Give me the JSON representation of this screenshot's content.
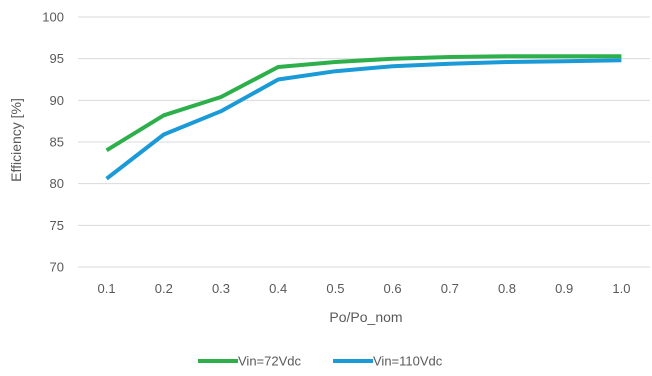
{
  "chart_data": {
    "type": "line",
    "x": [
      0.1,
      0.2,
      0.3,
      0.4,
      0.5,
      0.6,
      0.7,
      0.8,
      0.9,
      1.0
    ],
    "x_tick_labels": [
      "0.1",
      "0.2",
      "0.3",
      "0.4",
      "0.5",
      "0.6",
      "0.7",
      "0.8",
      "0.9",
      "1.0"
    ],
    "y_tick_labels": [
      "70",
      "75",
      "80",
      "85",
      "90",
      "95",
      "100"
    ],
    "ylim": [
      70,
      100
    ],
    "xlabel": "Po/Po_nom",
    "ylabel": "Efficiency [%]",
    "grid": "horizontal",
    "legend_position": "bottom",
    "series": [
      {
        "name": "Vin=72Vdc",
        "color": "#2db04b",
        "values": [
          84.0,
          88.2,
          90.4,
          94.0,
          94.6,
          95.0,
          95.2,
          95.3,
          95.3,
          95.3
        ]
      },
      {
        "name": "Vin=110Vdc",
        "color": "#1a9ad6",
        "values": [
          80.6,
          85.9,
          88.7,
          92.5,
          93.5,
          94.1,
          94.4,
          94.6,
          94.7,
          94.8
        ]
      }
    ]
  }
}
